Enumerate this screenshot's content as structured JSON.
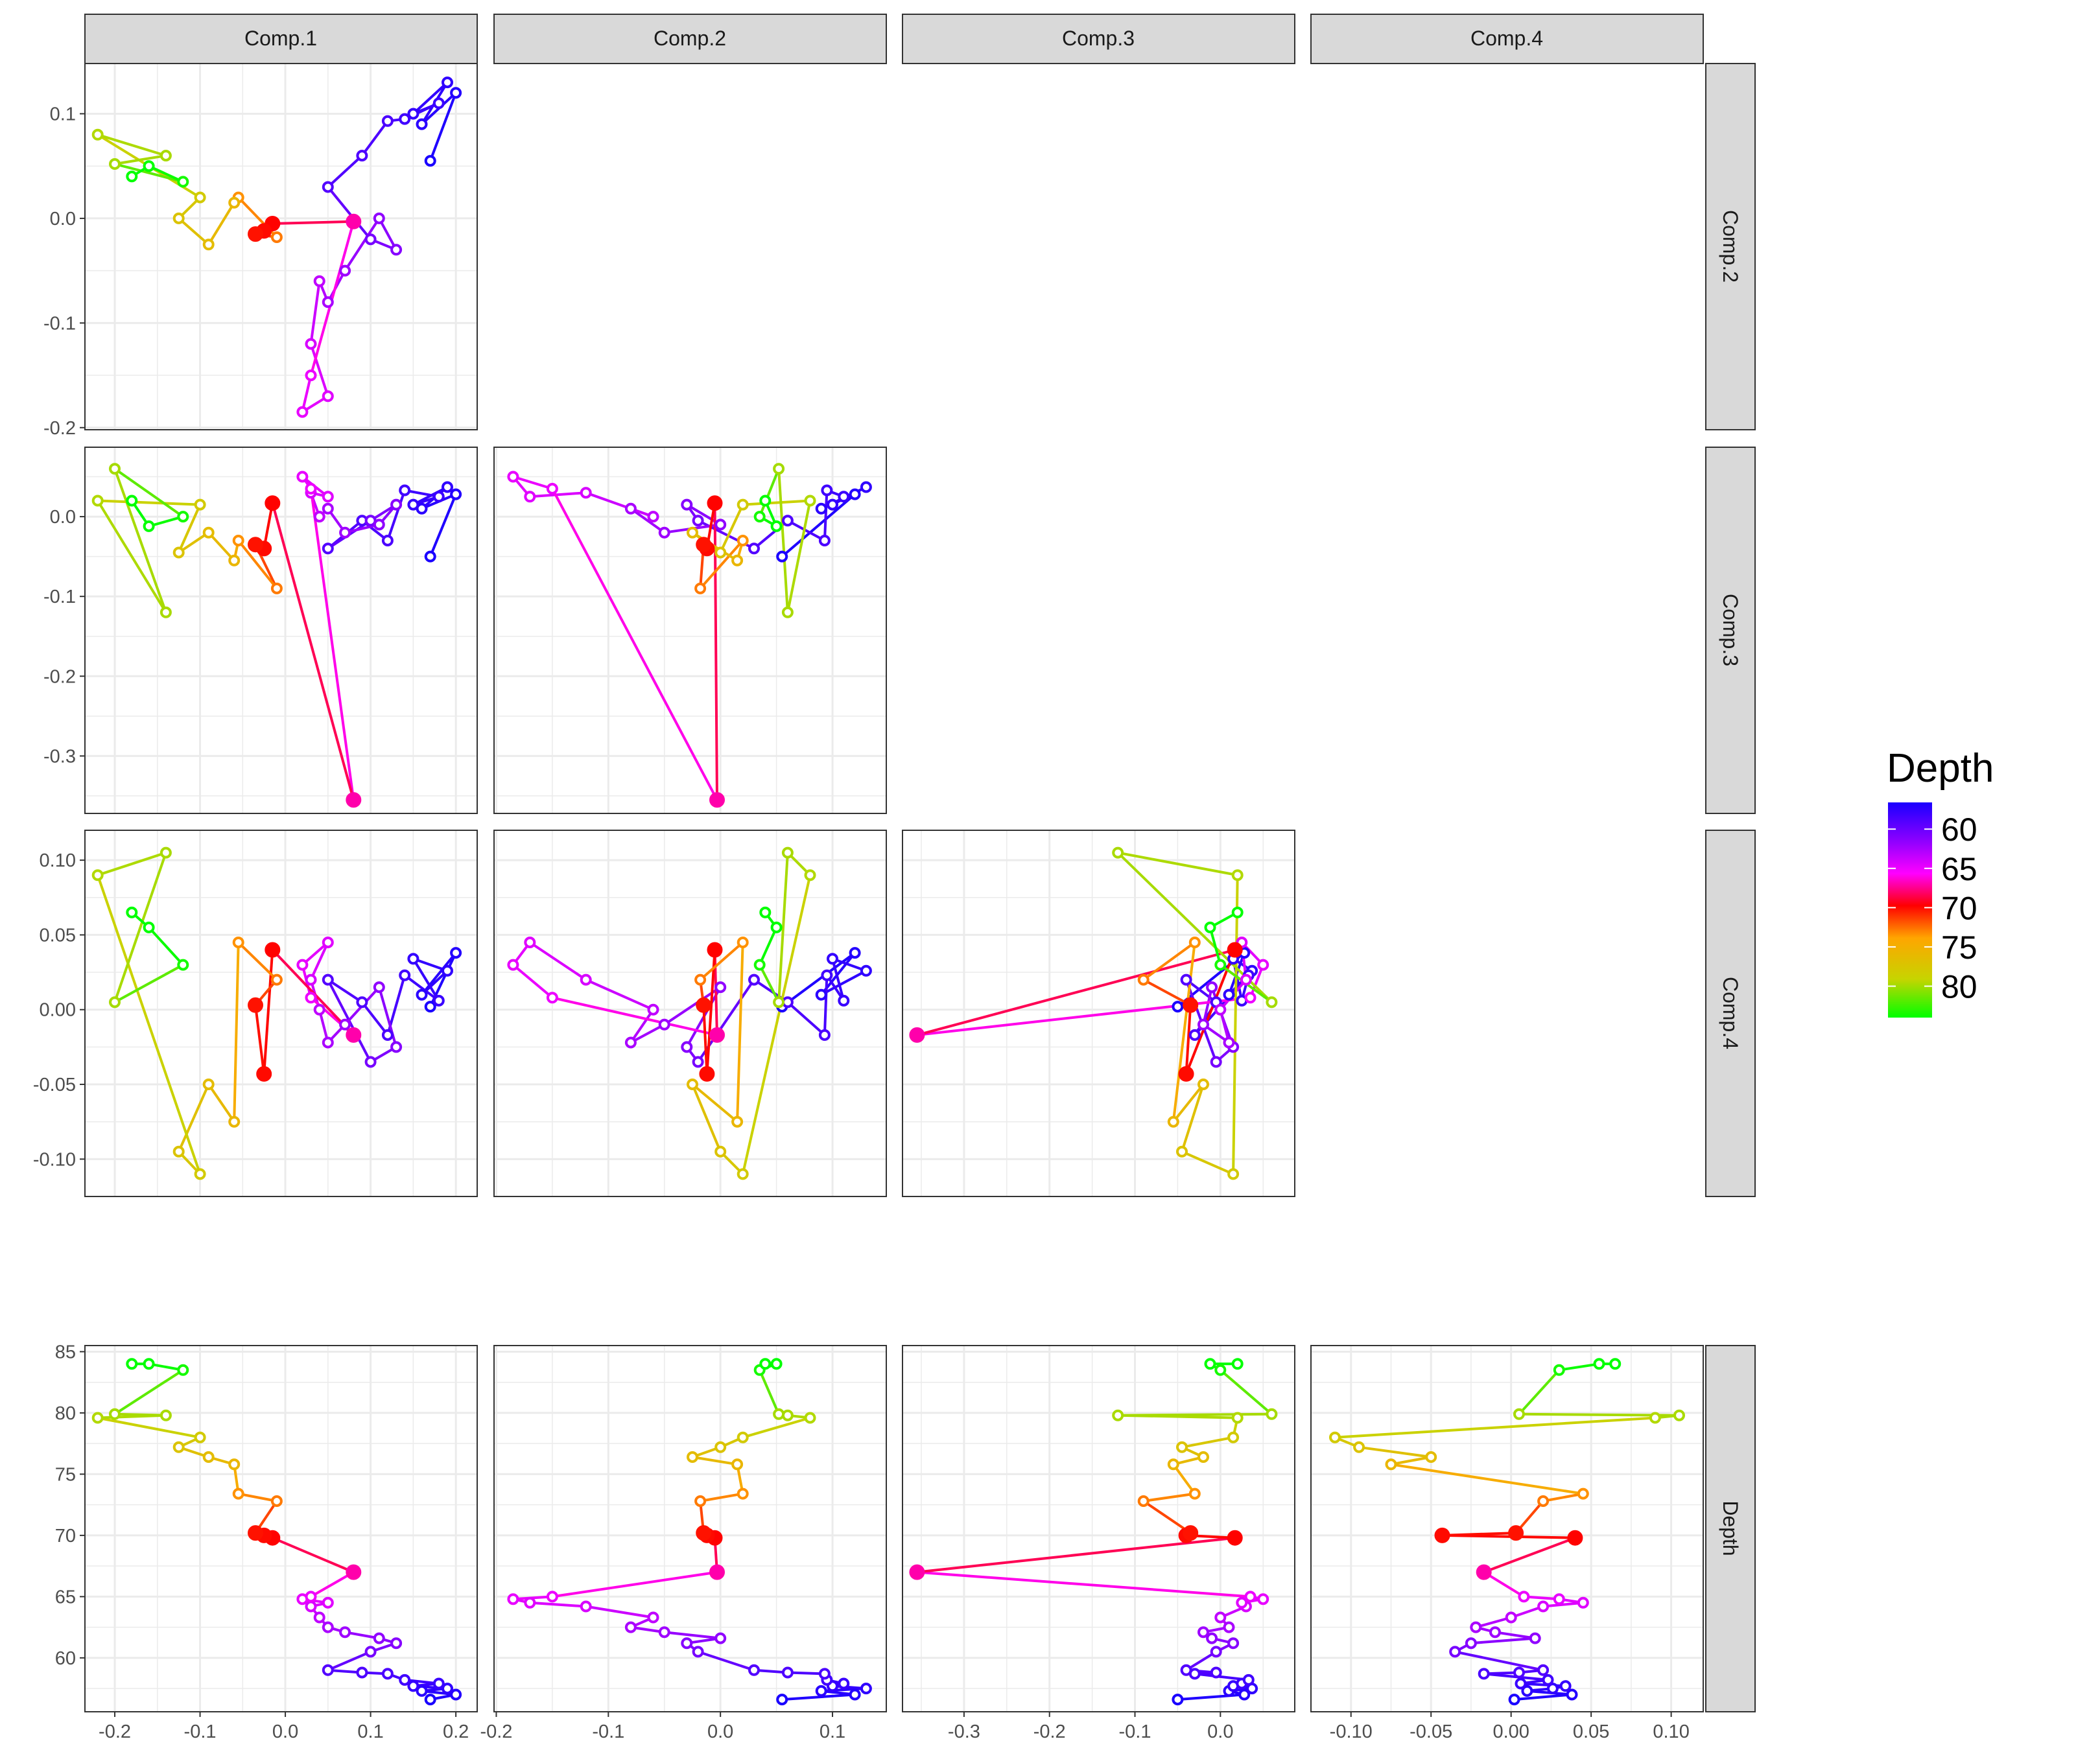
{
  "chart_data": {
    "type": "scatter",
    "description_type": "pairs-plot",
    "variables": [
      "Comp.1",
      "Comp.2",
      "Comp.3",
      "Comp.4",
      "Depth"
    ],
    "column_labels": [
      "Comp.1",
      "Comp.2",
      "Comp.3",
      "Comp.4"
    ],
    "row_labels": [
      "Comp.2",
      "Comp.3",
      "Comp.4",
      "Depth"
    ],
    "legend": {
      "title": "Depth",
      "ticks": [
        "60",
        "65",
        "70",
        "75",
        "80"
      ],
      "tick_values": [
        60,
        65,
        70,
        75,
        80
      ],
      "range": [
        56.6,
        84
      ],
      "colors": [
        "#1a00ff",
        "#8e00ff",
        "#ff00ff",
        "#ff0000",
        "#ffa500",
        "#c7d400",
        "#00ff00"
      ],
      "placement": "right"
    },
    "grid": true,
    "axes": {
      "Comp.1": {
        "ticks": [
          -0.2,
          -0.1,
          0.0,
          0.1,
          0.2
        ],
        "tick_labels": [
          "-0.2",
          "-0.1",
          "0.0",
          "0.1",
          "0.2"
        ],
        "range": [
          -0.235,
          0.225
        ]
      },
      "Comp.2": {
        "ticks": [
          -0.2,
          -0.1,
          0.0,
          0.1
        ],
        "tick_labels": [
          "-0.2",
          "-0.1",
          "0.0",
          "0.1"
        ],
        "range": [
          -0.202,
          0.148
        ]
      },
      "Comp.3": {
        "ticks": [
          -0.3,
          -0.2,
          -0.1,
          0.0
        ],
        "tick_labels": [
          "-0.3",
          "-0.2",
          "-0.1",
          "0.0"
        ],
        "range": [
          -0.372,
          0.087
        ]
      },
      "Comp.4": {
        "ticks": [
          -0.1,
          -0.05,
          0.0,
          0.05,
          0.1
        ],
        "tick_labels": [
          "-0.10",
          "-0.05",
          "0.00",
          "0.05",
          "0.10"
        ],
        "range": [
          -0.125,
          0.12
        ]
      },
      "Depth": {
        "ticks": [
          60,
          65,
          70,
          75,
          80,
          85
        ],
        "tick_labels": [
          "60",
          "65",
          "70",
          "75",
          "80",
          "85"
        ],
        "range": [
          55.6,
          85.5
        ]
      }
    },
    "panels": [
      {
        "x": "Comp.1",
        "y": "Comp.2"
      },
      {
        "x": "Comp.1",
        "y": "Comp.3"
      },
      {
        "x": "Comp.2",
        "y": "Comp.3"
      },
      {
        "x": "Comp.1",
        "y": "Comp.4"
      },
      {
        "x": "Comp.2",
        "y": "Comp.4"
      },
      {
        "x": "Comp.3",
        "y": "Comp.4"
      },
      {
        "x": "Comp.1",
        "y": "Depth"
      },
      {
        "x": "Comp.2",
        "y": "Depth"
      },
      {
        "x": "Comp.3",
        "y": "Depth"
      },
      {
        "x": "Comp.4",
        "y": "Depth"
      }
    ],
    "samples": [
      {
        "Depth": 56.6,
        "Comp.1": 0.17,
        "Comp.2": 0.055,
        "Comp.3": -0.05,
        "Comp.4": 0.002
      },
      {
        "Depth": 57.0,
        "Comp.1": 0.2,
        "Comp.2": 0.12,
        "Comp.3": 0.028,
        "Comp.4": 0.038
      },
      {
        "Depth": 57.3,
        "Comp.1": 0.16,
        "Comp.2": 0.09,
        "Comp.3": 0.01,
        "Comp.4": 0.01
      },
      {
        "Depth": 57.5,
        "Comp.1": 0.19,
        "Comp.2": 0.13,
        "Comp.3": 0.037,
        "Comp.4": 0.026
      },
      {
        "Depth": 57.7,
        "Comp.1": 0.15,
        "Comp.2": 0.1,
        "Comp.3": 0.015,
        "Comp.4": 0.034
      },
      {
        "Depth": 57.9,
        "Comp.1": 0.18,
        "Comp.2": 0.11,
        "Comp.3": 0.025,
        "Comp.4": 0.006
      },
      {
        "Depth": 58.2,
        "Comp.1": 0.14,
        "Comp.2": 0.095,
        "Comp.3": 0.033,
        "Comp.4": 0.023
      },
      {
        "Depth": 58.7,
        "Comp.1": 0.12,
        "Comp.2": 0.093,
        "Comp.3": -0.03,
        "Comp.4": -0.017
      },
      {
        "Depth": 58.8,
        "Comp.1": 0.09,
        "Comp.2": 0.06,
        "Comp.3": -0.005,
        "Comp.4": 0.005
      },
      {
        "Depth": 59.0,
        "Comp.1": 0.05,
        "Comp.2": 0.03,
        "Comp.3": -0.04,
        "Comp.4": 0.02
      },
      {
        "Depth": 60.5,
        "Comp.1": 0.1,
        "Comp.2": -0.02,
        "Comp.3": -0.005,
        "Comp.4": -0.035
      },
      {
        "Depth": 61.2,
        "Comp.1": 0.13,
        "Comp.2": -0.03,
        "Comp.3": 0.015,
        "Comp.4": -0.025
      },
      {
        "Depth": 61.6,
        "Comp.1": 0.11,
        "Comp.2": 0.0,
        "Comp.3": -0.01,
        "Comp.4": 0.015
      },
      {
        "Depth": 62.1,
        "Comp.1": 0.07,
        "Comp.2": -0.05,
        "Comp.3": -0.02,
        "Comp.4": -0.01
      },
      {
        "Depth": 62.5,
        "Comp.1": 0.05,
        "Comp.2": -0.08,
        "Comp.3": 0.01,
        "Comp.4": -0.022
      },
      {
        "Depth": 63.3,
        "Comp.1": 0.04,
        "Comp.2": -0.06,
        "Comp.3": 0.0,
        "Comp.4": 0.0
      },
      {
        "Depth": 64.2,
        "Comp.1": 0.03,
        "Comp.2": -0.12,
        "Comp.3": 0.03,
        "Comp.4": 0.02
      },
      {
        "Depth": 64.5,
        "Comp.1": 0.05,
        "Comp.2": -0.17,
        "Comp.3": 0.025,
        "Comp.4": 0.045
      },
      {
        "Depth": 64.8,
        "Comp.1": 0.02,
        "Comp.2": -0.185,
        "Comp.3": 0.05,
        "Comp.4": 0.03
      },
      {
        "Depth": 65.0,
        "Comp.1": 0.03,
        "Comp.2": -0.15,
        "Comp.3": 0.035,
        "Comp.4": 0.008
      },
      {
        "Depth": 67.0,
        "Comp.1": 0.08,
        "Comp.2": -0.003,
        "Comp.3": -0.355,
        "Comp.4": -0.017
      },
      {
        "Depth": 69.8,
        "Comp.1": -0.015,
        "Comp.2": -0.005,
        "Comp.3": 0.017,
        "Comp.4": 0.04
      },
      {
        "Depth": 70.0,
        "Comp.1": -0.025,
        "Comp.2": -0.012,
        "Comp.3": -0.04,
        "Comp.4": -0.043
      },
      {
        "Depth": 70.2,
        "Comp.1": -0.035,
        "Comp.2": -0.015,
        "Comp.3": -0.035,
        "Comp.4": 0.003
      },
      {
        "Depth": 72.8,
        "Comp.1": -0.01,
        "Comp.2": -0.018,
        "Comp.3": -0.09,
        "Comp.4": 0.02
      },
      {
        "Depth": 73.4,
        "Comp.1": -0.055,
        "Comp.2": 0.02,
        "Comp.3": -0.03,
        "Comp.4": 0.045
      },
      {
        "Depth": 75.8,
        "Comp.1": -0.06,
        "Comp.2": 0.015,
        "Comp.3": -0.055,
        "Comp.4": -0.075
      },
      {
        "Depth": 76.4,
        "Comp.1": -0.09,
        "Comp.2": -0.025,
        "Comp.3": -0.02,
        "Comp.4": -0.05
      },
      {
        "Depth": 77.2,
        "Comp.1": -0.125,
        "Comp.2": 0.0,
        "Comp.3": -0.045,
        "Comp.4": -0.095
      },
      {
        "Depth": 78.0,
        "Comp.1": -0.1,
        "Comp.2": 0.02,
        "Comp.3": 0.015,
        "Comp.4": -0.11
      },
      {
        "Depth": 79.6,
        "Comp.1": -0.22,
        "Comp.2": 0.08,
        "Comp.3": 0.02,
        "Comp.4": 0.09
      },
      {
        "Depth": 79.8,
        "Comp.1": -0.14,
        "Comp.2": 0.06,
        "Comp.3": -0.12,
        "Comp.4": 0.105
      },
      {
        "Depth": 79.9,
        "Comp.1": -0.2,
        "Comp.2": 0.052,
        "Comp.3": 0.06,
        "Comp.4": 0.005
      },
      {
        "Depth": 83.5,
        "Comp.1": -0.12,
        "Comp.2": 0.035,
        "Comp.3": 0.0,
        "Comp.4": 0.03
      },
      {
        "Depth": 84.0,
        "Comp.1": -0.16,
        "Comp.2": 0.05,
        "Comp.3": -0.012,
        "Comp.4": 0.055
      },
      {
        "Depth": 84.0,
        "Comp.1": -0.18,
        "Comp.2": 0.04,
        "Comp.3": 0.02,
        "Comp.4": 0.065
      }
    ]
  }
}
